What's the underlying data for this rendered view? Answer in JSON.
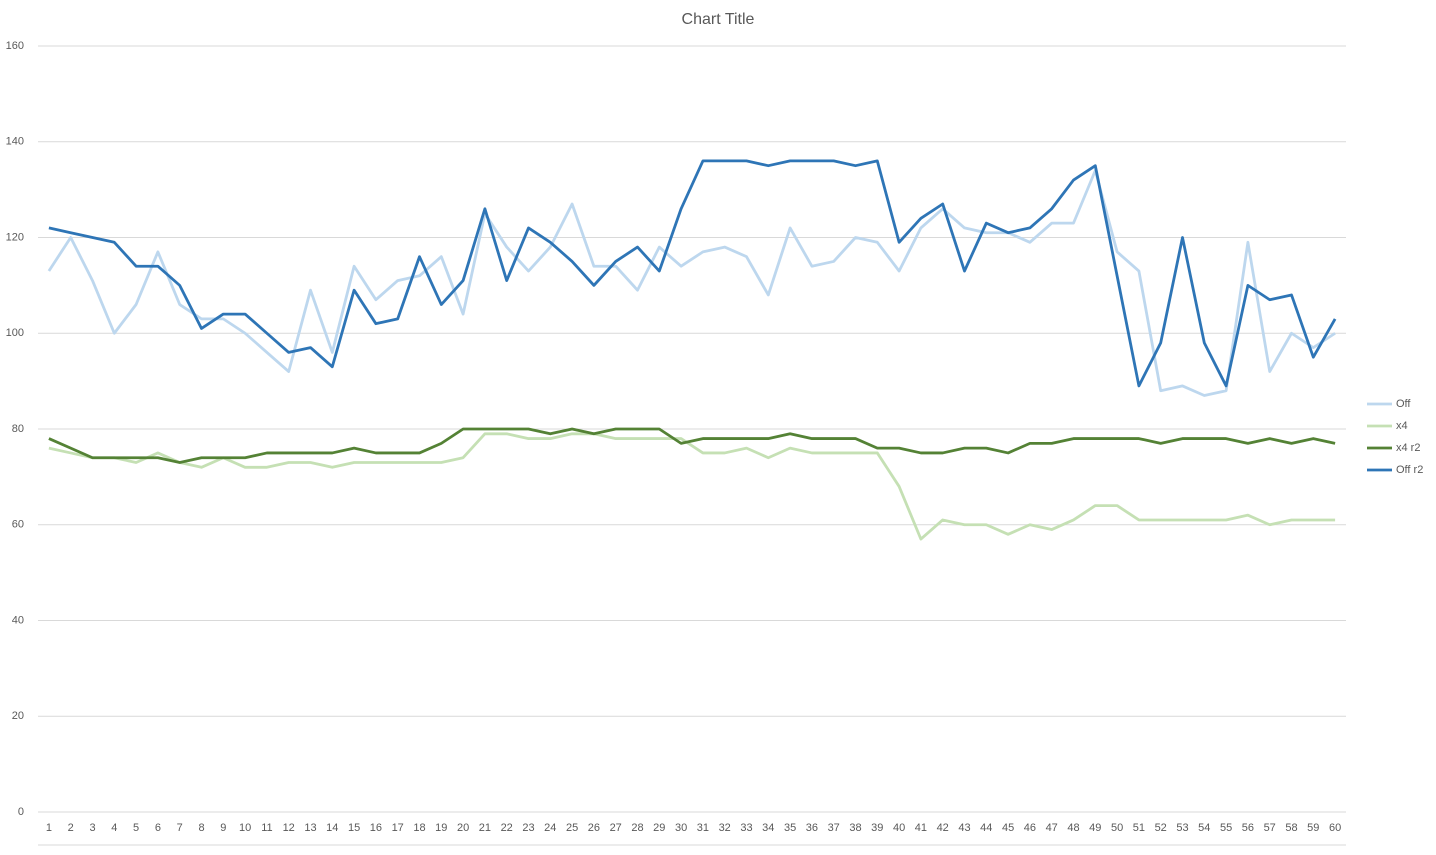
{
  "chart_data": {
    "type": "line",
    "title": "Chart Title",
    "categories": [
      1,
      2,
      3,
      4,
      5,
      6,
      7,
      8,
      9,
      10,
      11,
      12,
      13,
      14,
      15,
      16,
      17,
      18,
      19,
      20,
      21,
      22,
      23,
      24,
      25,
      26,
      27,
      28,
      29,
      30,
      31,
      32,
      33,
      34,
      35,
      36,
      37,
      38,
      39,
      40,
      41,
      42,
      43,
      44,
      45,
      46,
      47,
      48,
      49,
      50,
      51,
      52,
      53,
      54,
      55,
      56,
      57,
      58,
      59,
      60
    ],
    "series": [
      {
        "name": "Off",
        "color": "#bdd7ee",
        "values": [
          113,
          120,
          111,
          100,
          106,
          117,
          106,
          103,
          103,
          100,
          96,
          92,
          109,
          96,
          114,
          107,
          111,
          112,
          116,
          104,
          125,
          118,
          113,
          118,
          127,
          114,
          114,
          109,
          118,
          114,
          117,
          118,
          116,
          108,
          122,
          114,
          115,
          120,
          119,
          113,
          122,
          126,
          122,
          121,
          121,
          119,
          123,
          123,
          134,
          117,
          113,
          88,
          89,
          87,
          88,
          119,
          92,
          100,
          97,
          100
        ]
      },
      {
        "name": "x4",
        "color": "#c5e0b4",
        "values": [
          76,
          75,
          74,
          74,
          73,
          75,
          73,
          72,
          74,
          72,
          72,
          73,
          73,
          72,
          73,
          73,
          73,
          73,
          73,
          74,
          79,
          79,
          78,
          78,
          79,
          79,
          78,
          78,
          78,
          78,
          75,
          75,
          76,
          74,
          76,
          75,
          75,
          75,
          75,
          68,
          57,
          61,
          60,
          60,
          58,
          60,
          59,
          61,
          64,
          64,
          61,
          61,
          61,
          61,
          61,
          62,
          60,
          61,
          61,
          61
        ]
      },
      {
        "name": "x4 r2",
        "color": "#548235",
        "values": [
          78,
          76,
          74,
          74,
          74,
          74,
          73,
          74,
          74,
          74,
          75,
          75,
          75,
          75,
          76,
          75,
          75,
          75,
          77,
          80,
          80,
          80,
          80,
          79,
          80,
          79,
          80,
          80,
          80,
          77,
          78,
          78,
          78,
          78,
          79,
          78,
          78,
          78,
          76,
          76,
          75,
          75,
          76,
          76,
          75,
          77,
          77,
          78,
          78,
          78,
          78,
          77,
          78,
          78,
          78,
          77,
          78,
          77,
          78,
          77
        ]
      },
      {
        "name": "Off r2",
        "color": "#2e75b6",
        "values": [
          122,
          121,
          120,
          119,
          114,
          114,
          110,
          101,
          104,
          104,
          100,
          96,
          97,
          93,
          109,
          102,
          103,
          116,
          106,
          111,
          126,
          111,
          122,
          119,
          115,
          110,
          115,
          118,
          113,
          126,
          136,
          136,
          136,
          135,
          136,
          136,
          136,
          135,
          136,
          119,
          124,
          127,
          113,
          123,
          121,
          122,
          126,
          132,
          135,
          112,
          89,
          98,
          120,
          98,
          89,
          110,
          107,
          108,
          95,
          103
        ]
      }
    ],
    "ylim": [
      0,
      160
    ],
    "yticks": [
      0,
      20,
      40,
      60,
      80,
      100,
      120,
      140,
      160
    ],
    "grid": true
  }
}
